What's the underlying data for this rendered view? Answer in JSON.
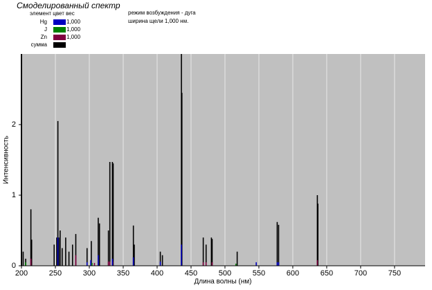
{
  "chart_data": {
    "type": "stick",
    "title": "Смоделированный спектр",
    "legend_header": "элемент  цвет  вес",
    "info": [
      "режим возбуждения -  дуга",
      "ширина щели   1,000 нм."
    ],
    "x_label": "Длина волны (нм)",
    "y_label": "Интенсивность",
    "xlim": [
      200,
      795
    ],
    "ylim": [
      0,
      3
    ],
    "xticks": [
      200,
      250,
      300,
      350,
      400,
      450,
      500,
      550,
      600,
      650,
      700,
      750
    ],
    "yticks": [
      0,
      1,
      2
    ],
    "grid": "vertical",
    "background": "#c0c0c0",
    "series": [
      {
        "name": "Hg",
        "color": "#0000c0",
        "weight": "1,000",
        "x": [
          253.7,
          296.7,
          302.2,
          313.2,
          334.1,
          365.0,
          404.7,
          435.8,
          546.1,
          577.0,
          579.1
        ],
        "values": [
          0.4,
          0.05,
          0.08,
          0.15,
          0.1,
          0.12,
          0.06,
          0.3,
          0.05,
          0.05,
          0.05
        ]
      },
      {
        "name": "J",
        "color": "#008000",
        "weight": "1,000",
        "x": [
          206.2,
          304.0,
          516.1
        ],
        "values": [
          0.05,
          0.04,
          0.03
        ]
      },
      {
        "name": "Zn",
        "color": "#800040",
        "weight": "1,000",
        "x": [
          213.9,
          280.1,
          307.6,
          328.2,
          330.3,
          334.5,
          468.0,
          472.2,
          481.1,
          636.2
        ],
        "values": [
          0.1,
          0.15,
          0.04,
          0.06,
          0.06,
          0.06,
          0.05,
          0.05,
          0.05,
          0.08
        ]
      },
      {
        "name": "сумма",
        "color": "#000000",
        "x": [
          202.5,
          206.2,
          213.9,
          215.0,
          248.2,
          252.0,
          253.7,
          255.0,
          257.0,
          260.0,
          265.2,
          270.0,
          275.3,
          280.1,
          296.7,
          303.0,
          313.2,
          315.0,
          328.2,
          330.3,
          334.1,
          335.2,
          365.0,
          366.3,
          404.7,
          407.8,
          435.8,
          436.5,
          468.0,
          472.2,
          480.0,
          481.1,
          518.0,
          577.0,
          579.1,
          636.2,
          637.0
        ],
        "values": [
          0.2,
          0.1,
          0.8,
          0.37,
          0.3,
          0.4,
          2.05,
          0.4,
          0.5,
          0.25,
          0.4,
          0.2,
          0.3,
          0.45,
          0.25,
          0.35,
          0.68,
          0.6,
          0.5,
          1.47,
          1.47,
          1.45,
          0.57,
          0.3,
          0.2,
          0.15,
          3.0,
          2.45,
          0.4,
          0.3,
          0.4,
          0.38,
          0.2,
          0.62,
          0.58,
          1.0,
          0.88
        ]
      }
    ]
  }
}
